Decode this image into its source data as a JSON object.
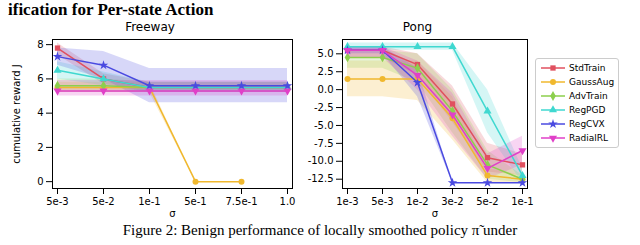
{
  "heading": "ification for Per-state Action",
  "caption": "Figure 2: Benign performance of locally smoothed policy π̃ under",
  "chart_data": [
    {
      "type": "line",
      "title": "Freeway",
      "x_label": "σ",
      "y_label": "cumulative reward J",
      "categories": [
        "5e-3",
        "5e-2",
        "1e-1",
        "5e-1",
        "7.5e-1",
        "1.0"
      ],
      "ylim": [
        -0.4,
        8.3
      ],
      "yticks": [
        0,
        2,
        4,
        6,
        8
      ],
      "series": [
        {
          "name": "StdTrain",
          "color": "#e0505f",
          "marker": "square",
          "values": [
            7.8,
            6.0,
            5.5,
            5.5,
            5.5,
            5.5
          ],
          "lower": [
            7.4,
            5.7,
            5.2,
            5.2,
            5.2,
            5.2
          ],
          "upper": [
            8.1,
            6.3,
            5.8,
            5.8,
            5.8,
            5.8
          ]
        },
        {
          "name": "GaussAug",
          "color": "#f0b82e",
          "marker": "circle",
          "values": [
            5.5,
            5.5,
            5.5,
            0,
            0,
            null
          ],
          "lower": [
            5.2,
            5.2,
            5.2,
            0,
            0,
            null
          ],
          "upper": [
            5.8,
            5.8,
            5.8,
            0,
            0,
            null
          ]
        },
        {
          "name": "AdvTrain",
          "color": "#8ccf4d",
          "marker": "diamond",
          "values": [
            5.6,
            5.6,
            5.5,
            5.5,
            5.5,
            5.5
          ],
          "lower": [
            5.2,
            5.2,
            5.2,
            5.2,
            5.2,
            5.2
          ],
          "upper": [
            6.0,
            6.0,
            5.8,
            5.8,
            5.8,
            5.8
          ]
        },
        {
          "name": "RegPGD",
          "color": "#3fd8d0",
          "marker": "triangle",
          "values": [
            6.5,
            6.0,
            5.5,
            5.5,
            5.5,
            5.5
          ],
          "lower": [
            6.0,
            5.6,
            5.2,
            5.2,
            5.2,
            5.2
          ],
          "upper": [
            7.0,
            6.4,
            5.8,
            5.8,
            5.8,
            5.8
          ]
        },
        {
          "name": "RegCVX",
          "color": "#4a4ae0",
          "marker": "star",
          "values": [
            7.3,
            6.8,
            5.6,
            5.6,
            5.6,
            5.6
          ],
          "lower": [
            6.8,
            6.0,
            4.6,
            4.6,
            4.6,
            4.6
          ],
          "upper": [
            7.8,
            7.6,
            6.6,
            6.6,
            6.6,
            6.6
          ]
        },
        {
          "name": "RadialRL",
          "color": "#e040c8",
          "marker": "triangle-down",
          "values": [
            5.3,
            5.3,
            5.3,
            5.3,
            5.3,
            5.3
          ],
          "lower": [
            5.0,
            5.0,
            5.0,
            5.0,
            5.0,
            5.0
          ],
          "upper": [
            5.9,
            5.9,
            5.9,
            5.9,
            5.9,
            5.9
          ]
        }
      ]
    },
    {
      "type": "line",
      "title": "Pong",
      "x_label": "σ",
      "legend": "right",
      "categories": [
        "1e-3",
        "5e-3",
        "1e-2",
        "3e-2",
        "5e-2",
        "1e-1"
      ],
      "ylim": [
        -13.8,
        7.0
      ],
      "yticks": [
        {
          "value": 5,
          "label": "5.0"
        },
        {
          "value": 2.5,
          "label": "2.5"
        },
        {
          "value": 0,
          "label": "0.0"
        },
        {
          "value": -2.5,
          "label": "-2.5"
        },
        {
          "value": -5,
          "label": "-5.0"
        },
        {
          "value": -7.5,
          "label": "-7.5"
        },
        {
          "value": -10,
          "label": "-10.0"
        },
        {
          "value": -12.5,
          "label": "-12.5"
        }
      ],
      "series": [
        {
          "name": "StdTrain",
          "color": "#e0505f",
          "marker": "square",
          "values": [
            5.5,
            5.5,
            3.5,
            -2.0,
            -9.5,
            -10.5
          ],
          "lower": [
            4.5,
            4.5,
            2.0,
            -4.5,
            -11.5,
            -12.0
          ],
          "upper": [
            6.0,
            6.0,
            5.0,
            0.5,
            -7.5,
            -9.0
          ]
        },
        {
          "name": "GaussAug",
          "color": "#f0b82e",
          "marker": "circle",
          "values": [
            1.5,
            1.5,
            1.5,
            -4.0,
            -12.0,
            -12.5
          ],
          "lower": [
            -1.0,
            -1.0,
            -1.5,
            -7.0,
            -13.0,
            -13.0
          ],
          "upper": [
            4.0,
            4.0,
            4.0,
            -1.0,
            -11.0,
            -12.0
          ]
        },
        {
          "name": "AdvTrain",
          "color": "#8ccf4d",
          "marker": "diamond",
          "values": [
            4.5,
            4.5,
            3.0,
            -3.0,
            -10.5,
            -12.5
          ],
          "lower": [
            3.0,
            3.0,
            1.0,
            -6.0,
            -12.5,
            -13.0
          ],
          "upper": [
            5.5,
            5.5,
            5.0,
            0.0,
            -8.5,
            -12.0
          ]
        },
        {
          "name": "RegPGD",
          "color": "#3fd8d0",
          "marker": "triangle",
          "values": [
            6.0,
            6.0,
            6.0,
            6.0,
            -3.0,
            -12.0
          ],
          "lower": [
            5.5,
            5.5,
            5.5,
            5.5,
            -6.0,
            -13.0
          ],
          "upper": [
            6.5,
            6.5,
            6.5,
            6.5,
            0.0,
            -11.0
          ]
        },
        {
          "name": "RegCVX",
          "color": "#4a4ae0",
          "marker": "star",
          "values": [
            5.5,
            5.5,
            1.0,
            -13.0,
            -13.0,
            -13.0
          ],
          "lower": [
            5.0,
            5.0,
            -1.0,
            -13.0,
            -13.0,
            -13.0
          ],
          "upper": [
            6.0,
            6.0,
            3.0,
            -13.0,
            -13.0,
            -13.0
          ]
        },
        {
          "name": "RadialRL",
          "color": "#e040c8",
          "marker": "triangle-down",
          "values": [
            5.5,
            5.5,
            2.0,
            -3.5,
            -11.0,
            -8.5
          ],
          "lower": [
            4.5,
            4.5,
            0.0,
            -6.5,
            -12.5,
            -10.5
          ],
          "upper": [
            6.0,
            6.0,
            4.0,
            -0.5,
            -9.0,
            -6.5
          ]
        }
      ]
    }
  ]
}
